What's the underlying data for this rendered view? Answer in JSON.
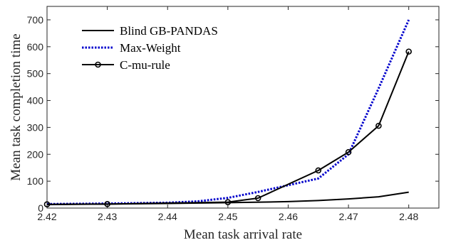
{
  "chart_data": {
    "type": "line",
    "xlabel": "Mean task arrival rate",
    "ylabel": "Mean task completion time",
    "xlim": [
      2.42,
      2.485
    ],
    "ylim": [
      0,
      750
    ],
    "xticks": [
      2.42,
      2.43,
      2.44,
      2.45,
      2.46,
      2.47,
      2.48
    ],
    "xtick_labels": [
      "2.42",
      "2.43",
      "2.44",
      "2.45",
      "2.46",
      "2.47",
      "2.48"
    ],
    "yticks": [
      0,
      100,
      200,
      300,
      400,
      500,
      600,
      700
    ],
    "ytick_labels": [
      "0",
      "100",
      "200",
      "300",
      "400",
      "500",
      "600",
      "700"
    ],
    "grid": false,
    "legend_position": "top-left",
    "series": [
      {
        "name": "Blind GB-PANDAS",
        "color": "#000000",
        "line_style": "solid",
        "marker": "none",
        "x": [
          2.42,
          2.43,
          2.44,
          2.45,
          2.46,
          2.465,
          2.47,
          2.475,
          2.48
        ],
        "y": [
          13,
          15,
          17,
          20,
          24,
          28,
          34,
          42,
          59
        ]
      },
      {
        "name": "Max-Weight",
        "color": "#0000cc",
        "line_style": "dotted",
        "marker": "none",
        "x": [
          2.42,
          2.43,
          2.44,
          2.445,
          2.45,
          2.455,
          2.46,
          2.465,
          2.47,
          2.475,
          2.48
        ],
        "y": [
          15,
          17,
          20,
          25,
          38,
          60,
          85,
          110,
          200,
          445,
          700
        ]
      },
      {
        "name": "C-mu-rule",
        "color": "#000000",
        "line_style": "solid",
        "marker": "circle",
        "x": [
          2.42,
          2.43,
          2.45,
          2.455,
          2.465,
          2.47,
          2.475,
          2.48
        ],
        "y": [
          14,
          15,
          22,
          37,
          140,
          208,
          306,
          582
        ]
      }
    ]
  }
}
